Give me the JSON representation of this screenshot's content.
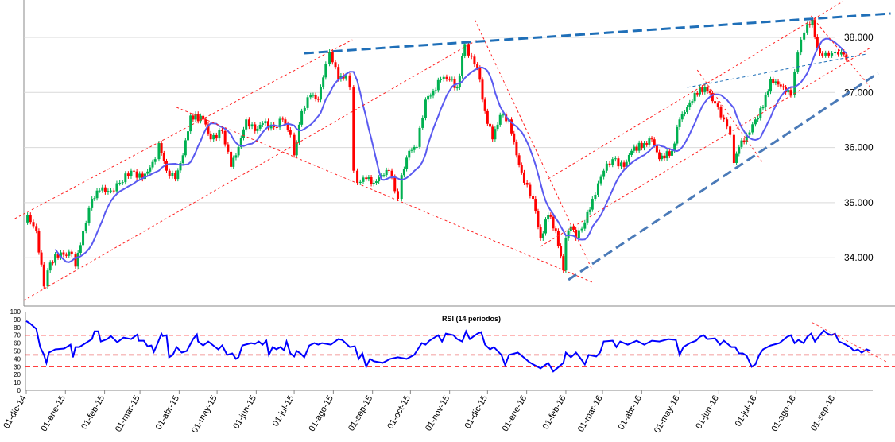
{
  "chart_data": [
    {
      "type": "candlestick",
      "title": "",
      "x_unit": "days since 01-dic-14",
      "ylim": [
        33100,
        38500
      ],
      "y_ticks": [
        "34.000",
        "35.000",
        "36.000",
        "37.000",
        "38.000"
      ],
      "y_tick_values": [
        34000,
        35000,
        36000,
        37000,
        38000
      ],
      "colors": {
        "up": "#00b050",
        "down": "#ff0000",
        "ma": "#5a5af0",
        "grid": "#d9d9d9",
        "trend_red": "#ff2020",
        "trend_blue": "#1f6fb8",
        "trend_steel": "#4a7ab8"
      },
      "closes": [
        [
          0,
          34640
        ],
        [
          1,
          34780
        ],
        [
          8,
          34490
        ],
        [
          14,
          33480
        ],
        [
          17,
          33770
        ],
        [
          23,
          34060
        ],
        [
          36,
          34060
        ],
        [
          39,
          33840
        ],
        [
          45,
          34490
        ],
        [
          52,
          35070
        ],
        [
          58,
          35220
        ],
        [
          67,
          35220
        ],
        [
          74,
          35360
        ],
        [
          83,
          35580
        ],
        [
          92,
          35430
        ],
        [
          102,
          35790
        ],
        [
          105,
          36080
        ],
        [
          111,
          35580
        ],
        [
          118,
          35430
        ],
        [
          124,
          35860
        ],
        [
          130,
          36580
        ],
        [
          140,
          36510
        ],
        [
          146,
          36150
        ],
        [
          155,
          36300
        ],
        [
          162,
          35650
        ],
        [
          168,
          36010
        ],
        [
          174,
          36510
        ],
        [
          181,
          36300
        ],
        [
          187,
          36440
        ],
        [
          196,
          36370
        ],
        [
          203,
          36510
        ],
        [
          209,
          36230
        ],
        [
          212,
          35860
        ],
        [
          218,
          36660
        ],
        [
          225,
          36950
        ],
        [
          231,
          36870
        ],
        [
          237,
          37520
        ],
        [
          240,
          37740
        ],
        [
          247,
          37240
        ],
        [
          253,
          37310
        ],
        [
          256,
          37090
        ],
        [
          259,
          35580
        ],
        [
          262,
          35360
        ],
        [
          269,
          35430
        ],
        [
          275,
          35360
        ],
        [
          281,
          35500
        ],
        [
          287,
          35580
        ],
        [
          294,
          35070
        ],
        [
          297,
          35500
        ],
        [
          303,
          35940
        ],
        [
          309,
          36010
        ],
        [
          316,
          36870
        ],
        [
          322,
          37020
        ],
        [
          328,
          37240
        ],
        [
          335,
          37240
        ],
        [
          341,
          37090
        ],
        [
          347,
          37880
        ],
        [
          350,
          37670
        ],
        [
          357,
          37450
        ],
        [
          363,
          36660
        ],
        [
          369,
          36150
        ],
        [
          375,
          36590
        ],
        [
          382,
          36510
        ],
        [
          388,
          35860
        ],
        [
          394,
          35360
        ],
        [
          401,
          35070
        ],
        [
          407,
          34350
        ],
        [
          413,
          34780
        ],
        [
          419,
          34490
        ],
        [
          425,
          33770
        ],
        [
          427,
          34350
        ],
        [
          431,
          34570
        ],
        [
          435,
          34350
        ],
        [
          442,
          34640
        ],
        [
          448,
          35070
        ],
        [
          457,
          35580
        ],
        [
          464,
          35790
        ],
        [
          473,
          35650
        ],
        [
          479,
          35940
        ],
        [
          489,
          36080
        ],
        [
          495,
          36150
        ],
        [
          501,
          35790
        ],
        [
          511,
          35940
        ],
        [
          517,
          36510
        ],
        [
          523,
          36730
        ],
        [
          533,
          37090
        ],
        [
          539,
          37020
        ],
        [
          545,
          36800
        ],
        [
          552,
          36510
        ],
        [
          557,
          36230
        ],
        [
          560,
          35720
        ],
        [
          564,
          36010
        ],
        [
          570,
          36230
        ],
        [
          577,
          36510
        ],
        [
          583,
          36730
        ],
        [
          589,
          37240
        ],
        [
          599,
          37090
        ],
        [
          605,
          36950
        ],
        [
          608,
          37380
        ],
        [
          613,
          37960
        ],
        [
          618,
          38240
        ],
        [
          622,
          38320
        ],
        [
          626,
          37810
        ],
        [
          630,
          37670
        ],
        [
          635,
          37670
        ],
        [
          640,
          37740
        ],
        [
          645,
          37740
        ],
        [
          649,
          37600
        ]
      ],
      "moving_average": {
        "label": "",
        "window_points": 10
      },
      "trendlines": [
        {
          "style": "red-dotted",
          "from": [
            -9,
            34710
          ],
          "to": [
            258,
            37957
          ]
        },
        {
          "style": "red-dotted",
          "from": [
            -2,
            33224
          ],
          "to": [
            357,
            37957
          ]
        },
        {
          "style": "red-dotted",
          "from": [
            119,
            36730
          ],
          "to": [
            448,
            33555
          ]
        },
        {
          "style": "red-dotted",
          "from": [
            355,
            38317
          ],
          "to": [
            448,
            33772
          ]
        },
        {
          "style": "red-dotted",
          "from": [
            413,
            35431
          ],
          "to": [
            646,
            38649
          ]
        },
        {
          "style": "red-dotted",
          "from": [
            407,
            34205
          ],
          "to": [
            668,
            37812
          ]
        },
        {
          "style": "red-dotted",
          "from": [
            531,
            37408
          ],
          "to": [
            583,
            35720
          ]
        },
        {
          "style": "red-dotted",
          "from": [
            621,
            38390
          ],
          "to": [
            668,
            37091
          ]
        },
        {
          "style": "blue-dashed",
          "from": [
            220,
            37711
          ],
          "to": [
            684,
            38433
          ]
        },
        {
          "style": "steel-dashed",
          "from": [
            429,
            33599
          ],
          "to": [
            674,
            37351
          ]
        },
        {
          "style": "blue-thin",
          "from": [
            523,
            37091
          ],
          "to": [
            665,
            37697
          ]
        }
      ]
    },
    {
      "type": "line",
      "title": "RSI (14 periodos)",
      "ylim": [
        0,
        100
      ],
      "y_ticks": [
        "0",
        "10",
        "20",
        "30",
        "40",
        "50",
        "60",
        "70",
        "80",
        "90",
        "100"
      ],
      "x_tick_labels": [
        "01-dic-14",
        "01-ene-15",
        "01-feb-15",
        "01-mar-15",
        "01-abr-15",
        "01-may-15",
        "01-jun-15",
        "01-jul-15",
        "01-ago-15",
        "01-sep-15",
        "01-oct-15",
        "01-nov-15",
        "01-dic-15",
        "01-ene-16",
        "01-feb-16",
        "01-mar-16",
        "01-abr-16",
        "01-may-16",
        "01-jun-16",
        "01-jul-16",
        "01-ago-16",
        "01-sep-16"
      ],
      "x_tick_days": [
        0,
        31,
        62,
        90,
        121,
        151,
        182,
        212,
        243,
        274,
        304,
        335,
        365,
        396,
        427,
        456,
        487,
        517,
        548,
        578,
        609,
        640
      ],
      "levels": [
        70,
        45,
        30
      ],
      "colors": {
        "line": "#0000ff",
        "level": "#ff4040",
        "level_mid": "#e00000"
      },
      "values": [
        [
          0,
          88
        ],
        [
          3,
          85
        ],
        [
          8,
          78
        ],
        [
          11,
          55
        ],
        [
          14,
          45
        ],
        [
          16,
          35
        ],
        [
          18,
          48
        ],
        [
          23,
          52
        ],
        [
          30,
          53
        ],
        [
          35,
          58
        ],
        [
          37,
          42
        ],
        [
          39,
          55
        ],
        [
          42,
          55
        ],
        [
          47,
          60
        ],
        [
          52,
          65
        ],
        [
          54,
          75
        ],
        [
          57,
          75
        ],
        [
          59,
          62
        ],
        [
          64,
          65
        ],
        [
          67,
          69
        ],
        [
          72,
          61
        ],
        [
          77,
          67
        ],
        [
          83,
          65
        ],
        [
          88,
          71
        ],
        [
          89,
          63
        ],
        [
          93,
          63
        ],
        [
          96,
          56
        ],
        [
          99,
          57
        ],
        [
          101,
          49
        ],
        [
          104,
          60
        ],
        [
          107,
          72
        ],
        [
          108,
          69
        ],
        [
          111,
          70
        ],
        [
          113,
          42
        ],
        [
          116,
          45
        ],
        [
          119,
          55
        ],
        [
          123,
          48
        ],
        [
          127,
          50
        ],
        [
          132,
          65
        ],
        [
          135,
          71
        ],
        [
          136,
          62
        ],
        [
          140,
          57
        ],
        [
          144,
          62
        ],
        [
          148,
          57
        ],
        [
          152,
          52
        ],
        [
          155,
          57
        ],
        [
          159,
          45
        ],
        [
          163,
          47
        ],
        [
          166,
          40
        ],
        [
          168,
          42
        ],
        [
          171,
          57
        ],
        [
          178,
          60
        ],
        [
          181,
          59
        ],
        [
          184,
          62
        ],
        [
          187,
          58
        ],
        [
          190,
          63
        ],
        [
          192,
          45
        ],
        [
          195,
          55
        ],
        [
          198,
          52
        ],
        [
          201,
          55
        ],
        [
          204,
          51
        ],
        [
          206,
          62
        ],
        [
          209,
          47
        ],
        [
          212,
          43
        ],
        [
          214,
          50
        ],
        [
          217,
          47
        ],
        [
          220,
          42
        ],
        [
          224,
          57
        ],
        [
          228,
          60
        ],
        [
          231,
          58
        ],
        [
          234,
          60
        ],
        [
          241,
          58
        ],
        [
          247,
          65
        ],
        [
          250,
          64
        ],
        [
          256,
          55
        ],
        [
          260,
          56
        ],
        [
          263,
          40
        ],
        [
          266,
          47
        ],
        [
          269,
          30
        ],
        [
          272,
          40
        ],
        [
          275,
          37
        ],
        [
          282,
          35
        ],
        [
          288,
          40
        ],
        [
          294,
          42
        ],
        [
          301,
          40
        ],
        [
          307,
          45
        ],
        [
          313,
          60
        ],
        [
          316,
          58
        ],
        [
          319,
          63
        ],
        [
          326,
          70
        ],
        [
          329,
          62
        ],
        [
          332,
          72
        ],
        [
          338,
          70
        ],
        [
          341,
          65
        ],
        [
          345,
          62
        ],
        [
          348,
          75
        ],
        [
          351,
          65
        ],
        [
          357,
          72
        ],
        [
          360,
          74
        ],
        [
          363,
          58
        ],
        [
          367,
          52
        ],
        [
          370,
          55
        ],
        [
          376,
          45
        ],
        [
          379,
          32
        ],
        [
          382,
          45
        ],
        [
          389,
          48
        ],
        [
          395,
          40
        ],
        [
          398,
          36
        ],
        [
          401,
          33
        ],
        [
          407,
          28
        ],
        [
          413,
          35
        ],
        [
          417,
          24
        ],
        [
          420,
          28
        ],
        [
          425,
          35
        ],
        [
          427,
          48
        ],
        [
          431,
          42
        ],
        [
          435,
          48
        ],
        [
          438,
          42
        ],
        [
          442,
          33
        ],
        [
          445,
          45
        ],
        [
          448,
          44
        ],
        [
          451,
          43
        ],
        [
          454,
          48
        ],
        [
          457,
          62
        ],
        [
          464,
          63
        ],
        [
          467,
          55
        ],
        [
          470,
          62
        ],
        [
          476,
          58
        ],
        [
          483,
          63
        ],
        [
          489,
          58
        ],
        [
          495,
          63
        ],
        [
          501,
          62
        ],
        [
          508,
          65
        ],
        [
          514,
          64
        ],
        [
          517,
          45
        ],
        [
          520,
          55
        ],
        [
          525,
          60
        ],
        [
          530,
          63
        ],
        [
          533,
          68
        ],
        [
          536,
          70
        ],
        [
          539,
          65
        ],
        [
          545,
          66
        ],
        [
          549,
          58
        ],
        [
          552,
          63
        ],
        [
          558,
          55
        ],
        [
          561,
          55
        ],
        [
          564,
          47
        ],
        [
          567,
          47
        ],
        [
          570,
          44
        ],
        [
          574,
          30
        ],
        [
          577,
          33
        ],
        [
          580,
          45
        ],
        [
          583,
          52
        ],
        [
          589,
          57
        ],
        [
          596,
          60
        ],
        [
          602,
          68
        ],
        [
          605,
          70
        ],
        [
          608,
          60
        ],
        [
          611,
          64
        ],
        [
          615,
          60
        ],
        [
          618,
          68
        ],
        [
          621,
          72
        ],
        [
          624,
          62
        ],
        [
          628,
          70
        ],
        [
          631,
          76
        ],
        [
          634,
          72
        ],
        [
          637,
          70
        ],
        [
          640,
          72
        ],
        [
          643,
          62
        ],
        [
          646,
          60
        ],
        [
          652,
          55
        ],
        [
          655,
          50
        ],
        [
          658,
          52
        ],
        [
          661,
          48
        ],
        [
          665,
          52
        ],
        [
          668,
          50
        ]
      ],
      "trendline": {
        "from": [
          622,
          86
        ],
        "to": [
          681,
          36
        ]
      }
    }
  ]
}
